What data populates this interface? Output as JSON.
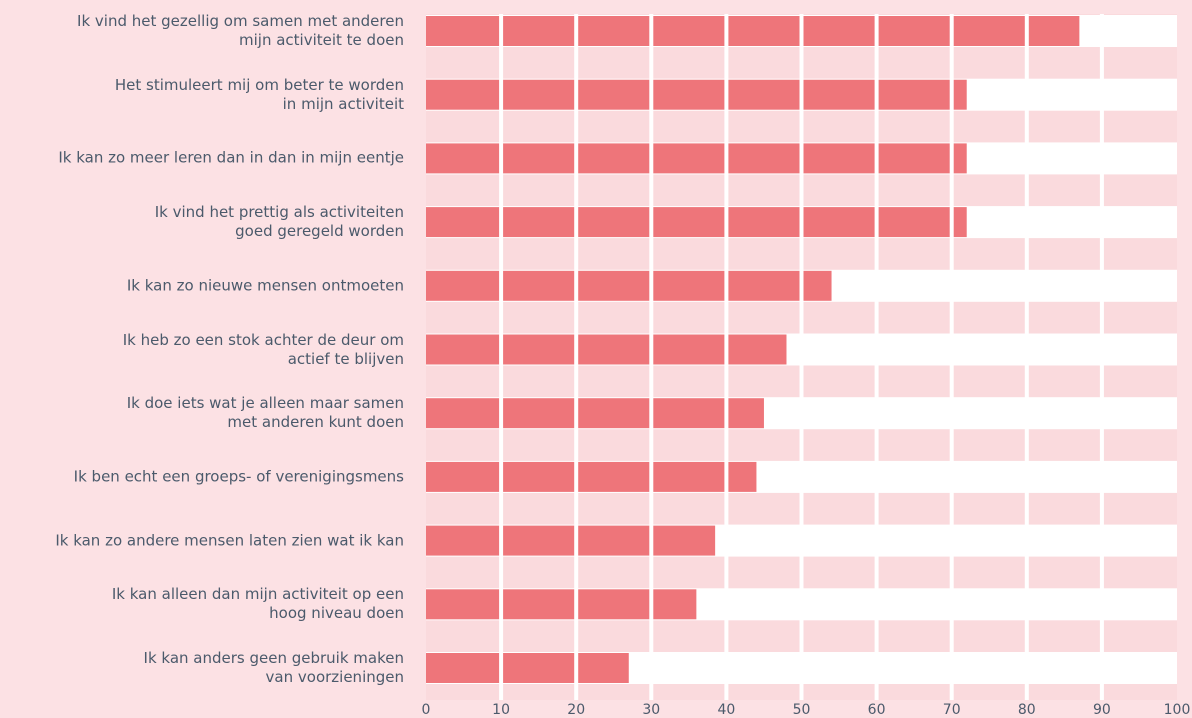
{
  "chart_data": {
    "type": "barh",
    "categories": [
      "Ik vind het gezellig om samen met anderen\nmijn activiteit te doen",
      "Het stimuleert mij om beter te worden\nin mijn activiteit",
      "Ik kan zo meer leren dan in dan in mijn eentje",
      "Ik vind het prettig als activiteiten\ngoed geregeld worden",
      "Ik kan zo nieuwe mensen ontmoeten",
      "Ik heb zo een stok achter de deur om\nactief te blijven",
      "Ik doe iets wat je alleen maar samen\nmet anderen kunt doen",
      "Ik ben echt een groeps- of verenigingsmens",
      "Ik kan zo andere mensen laten zien wat ik kan",
      "Ik kan alleen dan mijn activiteit op een\nhoog niveau doen",
      "Ik kan anders geen gebruik maken\nvan voorzieningen"
    ],
    "values": [
      87,
      72,
      72,
      72,
      54,
      48,
      45,
      44,
      38.5,
      36,
      27
    ],
    "color": "#ee757a",
    "xlim": [
      0,
      100
    ],
    "xticks": [
      0,
      10,
      20,
      30,
      40,
      50,
      60,
      70,
      80,
      90,
      100
    ],
    "grid": true
  }
}
